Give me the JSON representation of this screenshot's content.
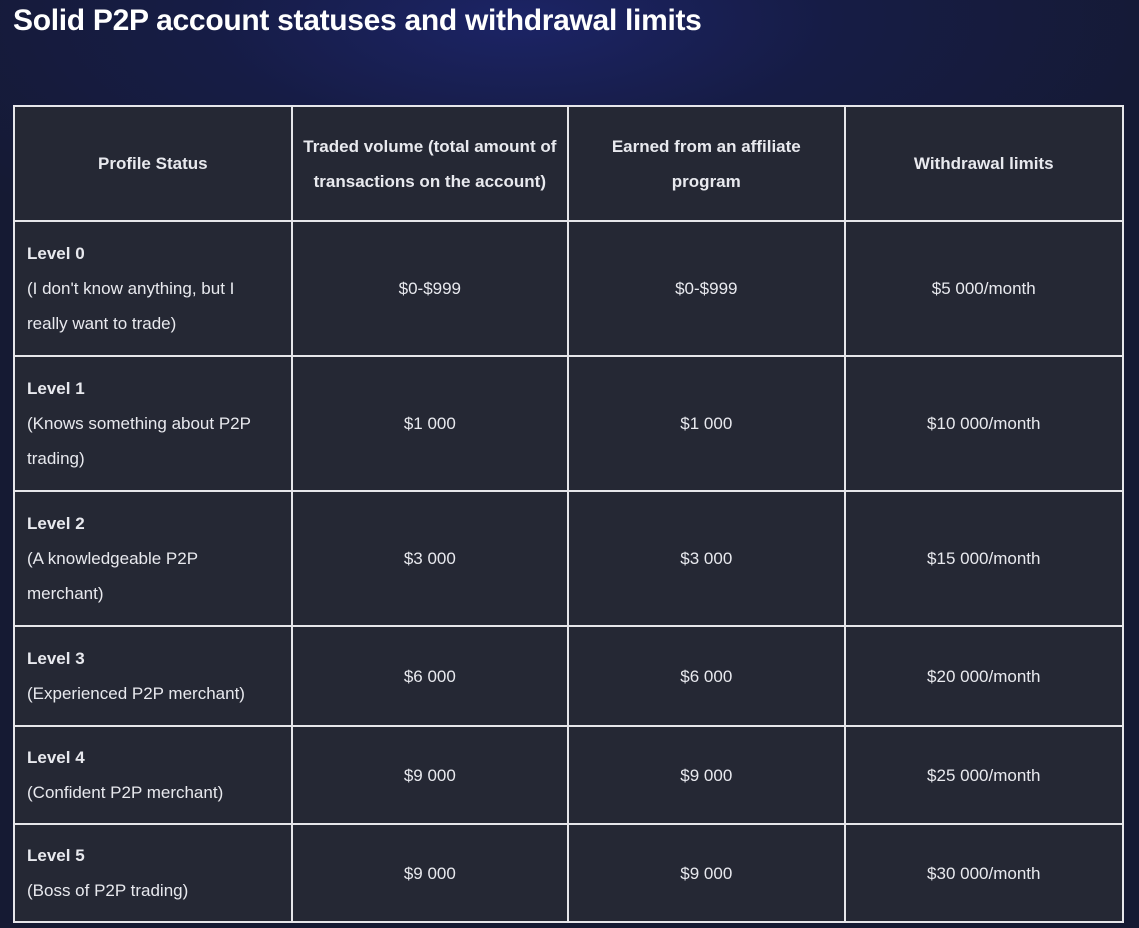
{
  "title": "Solid P2P account statuses and withdrawal limits",
  "table": {
    "headers": [
      "Profile Status",
      "Traded volume (total amount of transactions on the account)",
      "Earned from an affiliate program",
      "Withdrawal limits"
    ],
    "rows": [
      {
        "level": "Level 0",
        "desc": "(I don't know anything, but I really want to trade)",
        "traded": "$0-$999",
        "affiliate": "$0-$999",
        "limit": "$5 000/month"
      },
      {
        "level": "Level 1",
        "desc": "(Knows something about P2P trading)",
        "traded": "$1 000",
        "affiliate": "$1 000",
        "limit": "$10 000/month"
      },
      {
        "level": "Level 2",
        "desc": "(A knowledgeable P2P merchant)",
        "traded": "$3 000",
        "affiliate": "$3 000",
        "limit": "$15 000/month"
      },
      {
        "level": "Level 3",
        "desc": "(Experienced P2P merchant)",
        "traded": "$6 000",
        "affiliate": "$6 000",
        "limit": "$20 000/month"
      },
      {
        "level": "Level 4",
        "desc": "(Confident P2P merchant)",
        "traded": "$9 000",
        "affiliate": "$9 000",
        "limit": "$25 000/month"
      },
      {
        "level": "Level 5",
        "desc": "(Boss of P2P trading)",
        "traded": "$9 000",
        "affiliate": "$9 000",
        "limit": "$30 000/month"
      }
    ]
  }
}
